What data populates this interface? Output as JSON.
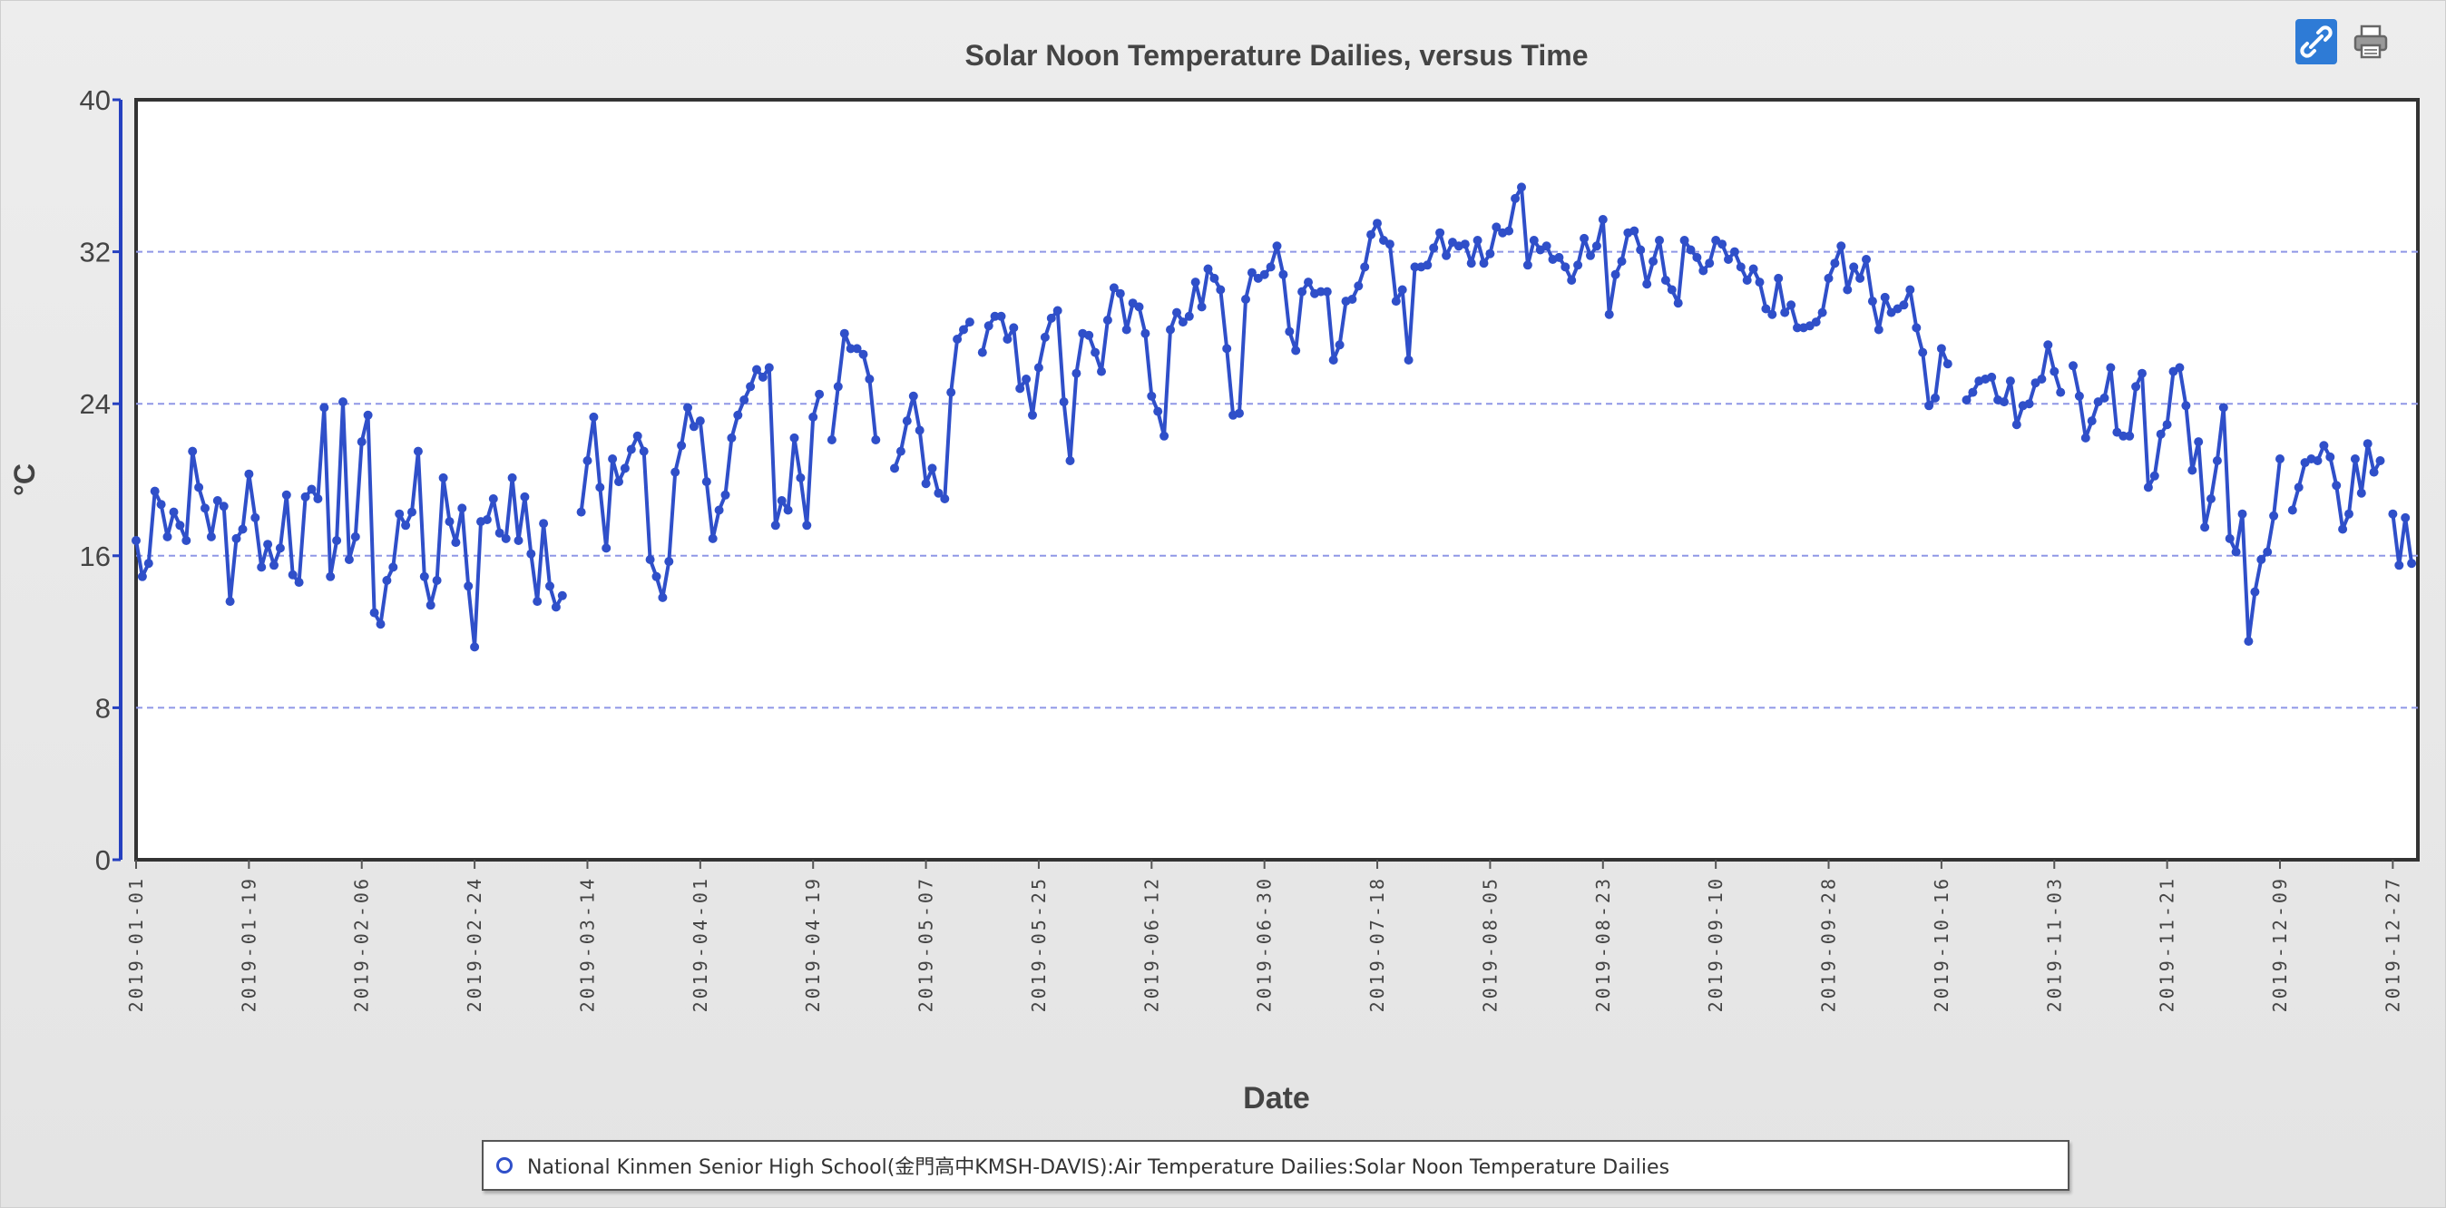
{
  "toolbar": {
    "link_icon": "link-icon",
    "print_icon": "print-icon"
  },
  "colors": {
    "series": "#2f4fc9",
    "grid": "#8f97e6",
    "axis": "#2540c0",
    "frame": "#333333"
  },
  "legend": {
    "label": "National Kinmen Senior High School(金門高中KMSH-DAVIS):Air Temperature Dailies:Solar Noon Temperature Dailies"
  },
  "chart_data": {
    "type": "line",
    "title": "Solar Noon Temperature Dailies, versus Time",
    "xlabel": "Date",
    "ylabel": "°C",
    "ylim": [
      0,
      40
    ],
    "yticks": [
      0,
      8,
      16,
      24,
      32,
      40
    ],
    "xlim": [
      "2019-01-01",
      "2019-12-31"
    ],
    "xticks": [
      "2019-01-01",
      "2019-01-19",
      "2019-02-06",
      "2019-02-24",
      "2019-03-14",
      "2019-04-01",
      "2019-04-19",
      "2019-05-07",
      "2019-05-25",
      "2019-06-12",
      "2019-06-30",
      "2019-07-18",
      "2019-08-05",
      "2019-08-23",
      "2019-09-10",
      "2019-09-28",
      "2019-10-16",
      "2019-11-03",
      "2019-11-21",
      "2019-12-09",
      "2019-12-27"
    ],
    "grid": "horizontal dashed",
    "legend_position": "bottom",
    "series": [
      {
        "name": "National Kinmen Senior High School(金門高中KMSH-DAVIS):Air Temperature Dailies:Solar Noon Temperature Dailies",
        "start": "2019-01-01",
        "values": [
          16.8,
          14.9,
          15.6,
          19.4,
          18.7,
          17.0,
          18.3,
          17.6,
          16.8,
          21.5,
          19.6,
          18.5,
          17.0,
          18.9,
          18.6,
          13.6,
          16.9,
          17.4,
          20.3,
          18.0,
          15.4,
          16.6,
          15.5,
          16.4,
          19.2,
          15.0,
          14.6,
          19.1,
          19.5,
          19.0,
          23.8,
          14.9,
          16.8,
          24.1,
          15.8,
          17.0,
          22.0,
          23.4,
          13.0,
          12.4,
          14.7,
          15.4,
          18.2,
          17.6,
          18.3,
          21.5,
          14.9,
          13.4,
          14.7,
          20.1,
          17.8,
          16.7,
          18.5,
          14.4,
          11.2,
          17.8,
          17.9,
          19.0,
          17.2,
          16.9,
          20.1,
          16.8,
          19.1,
          16.1,
          13.6,
          17.7,
          14.4,
          13.3,
          13.9,
          null,
          null,
          18.3,
          21.0,
          23.3,
          19.6,
          16.4,
          21.1,
          19.9,
          20.6,
          21.6,
          22.3,
          21.5,
          15.8,
          14.9,
          13.8,
          15.7,
          20.4,
          21.8,
          23.8,
          22.8,
          23.1,
          19.9,
          16.9,
          18.4,
          19.2,
          22.2,
          23.4,
          24.2,
          24.9,
          25.8,
          25.4,
          25.9,
          17.6,
          18.9,
          18.4,
          22.2,
          20.1,
          17.6,
          23.3,
          24.5,
          null,
          22.1,
          24.9,
          27.7,
          26.9,
          26.9,
          26.6,
          25.3,
          22.1,
          null,
          null,
          20.6,
          21.5,
          23.1,
          24.4,
          22.6,
          19.8,
          20.6,
          19.3,
          19.0,
          24.6,
          27.4,
          27.9,
          28.3,
          null,
          26.7,
          28.1,
          28.6,
          28.6,
          27.4,
          28.0,
          24.8,
          25.3,
          23.4,
          25.9,
          27.5,
          28.5,
          28.9,
          24.1,
          21.0,
          25.6,
          27.7,
          27.6,
          26.7,
          25.7,
          28.4,
          30.1,
          29.8,
          27.9,
          29.3,
          29.1,
          27.7,
          24.4,
          23.6,
          22.3,
          27.9,
          28.8,
          28.3,
          28.6,
          30.4,
          29.1,
          31.1,
          30.6,
          30.0,
          26.9,
          23.4,
          23.5,
          29.5,
          30.9,
          30.6,
          30.8,
          31.2,
          32.3,
          30.8,
          27.8,
          26.8,
          29.9,
          30.4,
          29.8,
          29.9,
          29.9,
          26.3,
          27.1,
          29.4,
          29.5,
          30.2,
          31.2,
          32.9,
          33.5,
          32.6,
          32.4,
          29.4,
          30.0,
          26.3,
          31.2,
          31.2,
          31.3,
          32.2,
          33.0,
          31.8,
          32.5,
          32.3,
          32.4,
          31.4,
          32.6,
          31.4,
          31.9,
          33.3,
          33.0,
          33.1,
          34.8,
          35.4,
          31.3,
          32.6,
          32.1,
          32.3,
          31.6,
          31.7,
          31.2,
          30.5,
          31.3,
          32.7,
          31.8,
          32.3,
          33.7,
          28.7,
          30.8,
          31.5,
          33.0,
          33.1,
          32.1,
          30.3,
          31.5,
          32.6,
          30.5,
          30.0,
          29.3,
          32.6,
          32.1,
          31.7,
          31.0,
          31.4,
          32.6,
          32.4,
          31.6,
          32.0,
          31.2,
          30.5,
          31.1,
          30.4,
          29.0,
          28.7,
          30.6,
          28.8,
          29.2,
          28.0,
          28.0,
          28.1,
          28.3,
          28.8,
          30.6,
          31.4,
          32.3,
          30.0,
          31.2,
          30.6,
          31.6,
          29.4,
          27.9,
          29.6,
          28.8,
          29.0,
          29.2,
          30.0,
          28.0,
          26.7,
          23.9,
          24.3,
          26.9,
          26.1,
          null,
          null,
          24.2,
          24.6,
          25.2,
          25.3,
          25.4,
          24.2,
          24.1,
          25.2,
          22.9,
          23.9,
          24.0,
          25.1,
          25.3,
          27.1,
          25.7,
          24.6,
          null,
          26.0,
          24.4,
          22.2,
          23.1,
          24.1,
          24.3,
          25.9,
          22.5,
          22.3,
          22.3,
          24.9,
          25.6,
          19.6,
          20.2,
          22.4,
          22.9,
          25.7,
          25.9,
          23.9,
          20.5,
          22.0,
          17.5,
          19.0,
          21.0,
          23.8,
          16.9,
          16.2,
          18.2,
          11.5,
          14.1,
          15.8,
          16.2,
          18.1,
          21.1,
          null,
          18.4,
          19.6,
          20.9,
          21.1,
          21.0,
          21.8,
          21.2,
          19.7,
          17.4,
          18.2,
          21.1,
          19.3,
          21.9,
          20.4,
          21.0,
          null,
          18.2,
          15.5,
          18.0,
          15.6
        ]
      }
    ]
  }
}
